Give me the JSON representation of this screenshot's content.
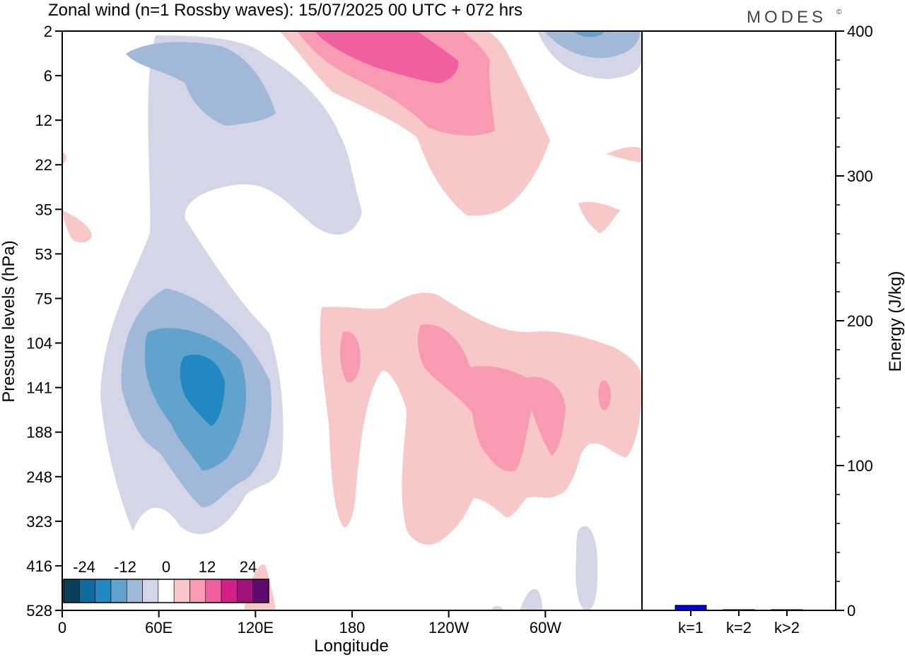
{
  "chart_data": [
    {
      "type": "heatmap",
      "title": "Zonal wind (n=1 Rossby waves):  15/07/2025  00 UTC  + 072 hrs",
      "xlabel": "Longitude",
      "ylabel": "Pressure levels (hPa)",
      "x_ticks": [
        "0",
        "60E",
        "120E",
        "180",
        "120W",
        "60W"
      ],
      "x_tick_degrees": [
        0,
        60,
        120,
        180,
        240,
        300
      ],
      "xlim": [
        0,
        360
      ],
      "y_ticks": [
        "2",
        "6",
        "12",
        "22",
        "35",
        "53",
        "75",
        "104",
        "141",
        "188",
        "248",
        "323",
        "416",
        "528"
      ],
      "y_scale": "log",
      "colorbar": {
        "labels": [
          "-24",
          "-12",
          "0",
          "12",
          "24"
        ],
        "levels": [
          -30,
          -25,
          -20,
          -15,
          -10,
          -5,
          0,
          5,
          10,
          15,
          20,
          25,
          30
        ],
        "colors": [
          "#0b3f5c",
          "#0f6a9e",
          "#2188c2",
          "#62a3cd",
          "#a1b8d8",
          "#d4d6e8",
          "#ffffff",
          "#f8c8c8",
          "#f89bb2",
          "#f0609e",
          "#d21f8a",
          "#a0127a",
          "#600a70"
        ]
      },
      "regions": [
        {
          "lon": 87,
          "lev": 141,
          "value": -20,
          "note": "core of negative anomaly, 60E-120E, 75-300 hPa"
        },
        {
          "lon": 70,
          "lev": 10,
          "value": -8,
          "note": "upper negative anomaly, 30E-100E, 2-20 hPa"
        },
        {
          "lon": 190,
          "lev": 4,
          "value": 15,
          "note": "upper positive anomaly, 150E-140W, 2-12 hPa"
        },
        {
          "lon": 230,
          "lev": 150,
          "value": 8,
          "note": "positive anomaly, 160E-0, 75-400 hPa"
        }
      ]
    },
    {
      "type": "bar",
      "categories": [
        "k=1",
        "k=2",
        "k>2"
      ],
      "values": [
        3.5,
        0.5,
        0.5
      ],
      "ylabel": "Energy (J/kg)",
      "y_ticks": [
        "0",
        "100",
        "200",
        "300",
        "400"
      ],
      "ylim": [
        0,
        400
      ],
      "bar_color": "#0000dd"
    }
  ],
  "brand": "MODES",
  "brand_mark": "©"
}
